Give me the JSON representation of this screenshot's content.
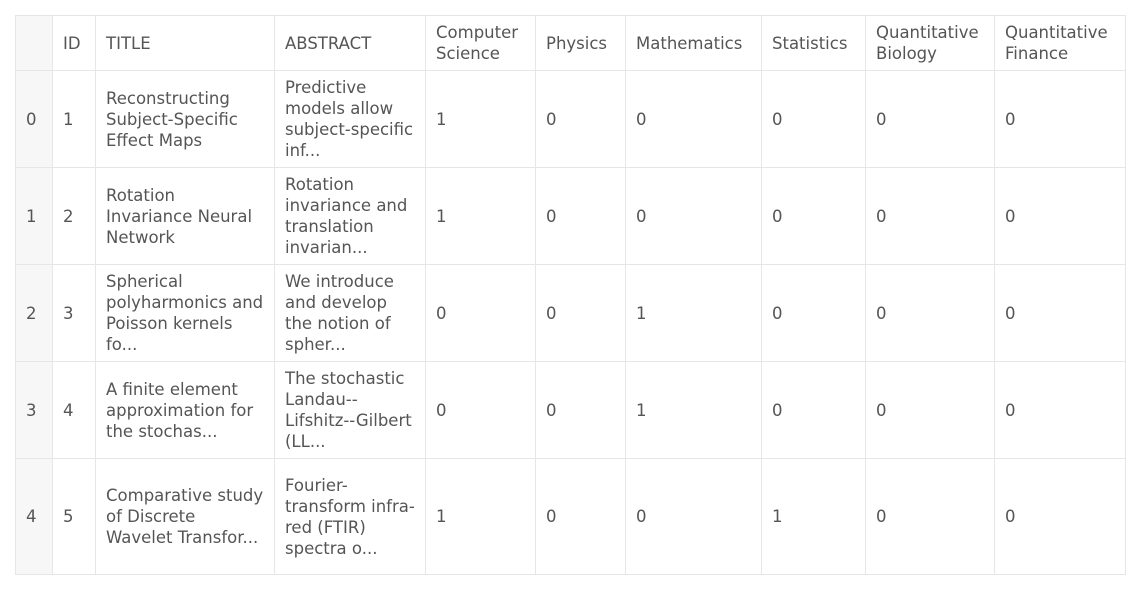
{
  "table": {
    "columns": [
      "",
      "ID",
      "TITLE",
      "ABSTRACT",
      "Computer Science",
      "Physics",
      "Mathematics",
      "Statistics",
      "Quantitative Biology",
      "Quantitative Finance"
    ],
    "rows": [
      [
        "0",
        "1",
        "Reconstructing Subject-Specific Effect Maps",
        "Predictive models allow subject-specific inf...",
        "1",
        "0",
        "0",
        "0",
        "0",
        "0"
      ],
      [
        "1",
        "2",
        "Rotation Invariance Neural Network",
        "Rotation invariance and translation invarian...",
        "1",
        "0",
        "0",
        "0",
        "0",
        "0"
      ],
      [
        "2",
        "3",
        "Spherical polyharmonics and Poisson kernels fo...",
        "We introduce and develop the notion of spher...",
        "0",
        "0",
        "1",
        "0",
        "0",
        "0"
      ],
      [
        "3",
        "4",
        "A finite element approximation for the stochas...",
        "The stochastic Landau--Lifshitz--Gilbert (LL...",
        "0",
        "0",
        "1",
        "0",
        "0",
        "0"
      ],
      [
        "4",
        "5",
        "Comparative study of Discrete Wavelet Transfor...",
        "Fourier-transform infra-red (FTIR) spectra o...",
        "1",
        "0",
        "0",
        "1",
        "0",
        "0"
      ]
    ]
  }
}
